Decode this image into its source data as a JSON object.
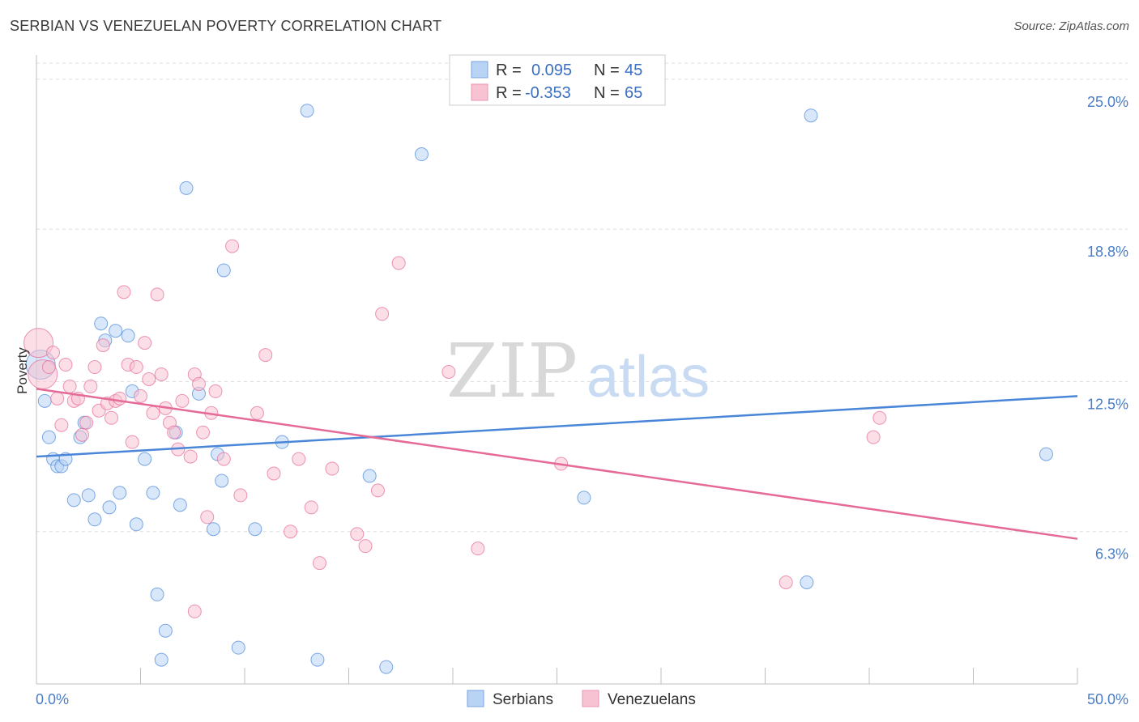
{
  "title": "SERBIAN VS VENEZUELAN POVERTY CORRELATION CHART",
  "source": "Source: ZipAtlas.com",
  "watermark": {
    "zip": "ZIP",
    "atlas": "atlas"
  },
  "legend_top": {
    "rows": [
      {
        "r_label": "R =",
        "r_value": "0.095",
        "n_label": "N =",
        "n_value": "45",
        "color": "#a9c8f0"
      },
      {
        "r_label": "R =",
        "r_value": "-0.353",
        "n_label": "N =",
        "n_value": "65",
        "color": "#f6b9cb"
      }
    ]
  },
  "legend_bottom": {
    "items": [
      "Serbians",
      "Venezuelans"
    ]
  },
  "chart_data": {
    "type": "scatter",
    "xlabel": "",
    "ylabel": "Poverty",
    "xlim": [
      0,
      50
    ],
    "ylim": [
      0,
      26
    ],
    "x_tick_labels": [
      "0.0%",
      "50.0%"
    ],
    "y_ticks": [
      6.3,
      12.5,
      18.8,
      25.0
    ],
    "y_tick_labels": [
      "6.3%",
      "12.5%",
      "18.8%",
      "25.0%"
    ],
    "grid": true,
    "series": [
      {
        "name": "Serbians",
        "color": "#4a86d8",
        "fill": "#b8d3f4",
        "trend": {
          "x": [
            0,
            50
          ],
          "y": [
            9.4,
            11.9
          ]
        },
        "points": [
          [
            0.2,
            13.2
          ],
          [
            0.4,
            11.7
          ],
          [
            0.6,
            10.2
          ],
          [
            0.8,
            9.3
          ],
          [
            1.0,
            9.0
          ],
          [
            1.2,
            9.0
          ],
          [
            1.4,
            9.3
          ],
          [
            1.8,
            7.6
          ],
          [
            2.1,
            10.2
          ],
          [
            2.3,
            10.8
          ],
          [
            2.5,
            7.8
          ],
          [
            2.8,
            6.8
          ],
          [
            3.1,
            14.9
          ],
          [
            3.3,
            14.2
          ],
          [
            3.5,
            7.3
          ],
          [
            3.8,
            14.6
          ],
          [
            4.0,
            7.9
          ],
          [
            4.4,
            14.4
          ],
          [
            4.6,
            12.1
          ],
          [
            4.8,
            6.6
          ],
          [
            5.2,
            9.3
          ],
          [
            5.6,
            7.9
          ],
          [
            5.8,
            3.7
          ],
          [
            6.2,
            2.2
          ],
          [
            6.7,
            10.4
          ],
          [
            6.9,
            7.4
          ],
          [
            7.2,
            20.5
          ],
          [
            7.8,
            12.0
          ],
          [
            8.5,
            6.4
          ],
          [
            8.7,
            9.5
          ],
          [
            8.9,
            8.4
          ],
          [
            9.0,
            17.1
          ],
          [
            9.7,
            1.5
          ],
          [
            10.5,
            6.4
          ],
          [
            11.8,
            10.0
          ],
          [
            13.0,
            23.7
          ],
          [
            13.5,
            1.0
          ],
          [
            16.0,
            8.6
          ],
          [
            18.5,
            21.9
          ],
          [
            6.0,
            1.0
          ],
          [
            16.8,
            0.7
          ],
          [
            26.3,
            7.7
          ],
          [
            37.2,
            23.5
          ],
          [
            37.0,
            4.2
          ],
          [
            48.5,
            9.5
          ]
        ]
      },
      {
        "name": "Venezuelans",
        "color": "#e56a97",
        "fill": "#f7c2d2",
        "trend": {
          "x": [
            0,
            50
          ],
          "y": [
            12.2,
            6.0
          ]
        },
        "points": [
          [
            0.1,
            14.1
          ],
          [
            0.3,
            12.8
          ],
          [
            0.6,
            13.1
          ],
          [
            0.8,
            13.7
          ],
          [
            1.0,
            11.8
          ],
          [
            1.2,
            10.7
          ],
          [
            1.4,
            13.2
          ],
          [
            1.6,
            12.3
          ],
          [
            1.8,
            11.7
          ],
          [
            2.0,
            11.8
          ],
          [
            2.2,
            10.3
          ],
          [
            2.4,
            10.8
          ],
          [
            2.6,
            12.3
          ],
          [
            2.8,
            13.1
          ],
          [
            3.0,
            11.3
          ],
          [
            3.2,
            14.0
          ],
          [
            3.4,
            11.6
          ],
          [
            3.6,
            11.0
          ],
          [
            3.8,
            11.7
          ],
          [
            4.0,
            11.8
          ],
          [
            4.2,
            16.2
          ],
          [
            4.4,
            13.2
          ],
          [
            4.6,
            10.0
          ],
          [
            4.8,
            13.1
          ],
          [
            5.0,
            11.9
          ],
          [
            5.2,
            14.1
          ],
          [
            5.4,
            12.6
          ],
          [
            5.6,
            11.2
          ],
          [
            5.8,
            16.1
          ],
          [
            6.0,
            12.8
          ],
          [
            6.2,
            11.4
          ],
          [
            6.4,
            10.8
          ],
          [
            6.6,
            10.4
          ],
          [
            6.8,
            9.7
          ],
          [
            7.0,
            11.7
          ],
          [
            7.4,
            9.4
          ],
          [
            7.6,
            12.8
          ],
          [
            7.8,
            12.4
          ],
          [
            8.0,
            10.4
          ],
          [
            8.2,
            6.9
          ],
          [
            8.4,
            11.2
          ],
          [
            8.6,
            12.1
          ],
          [
            9.0,
            9.3
          ],
          [
            9.4,
            18.1
          ],
          [
            9.8,
            7.8
          ],
          [
            10.6,
            11.2
          ],
          [
            11.0,
            13.6
          ],
          [
            11.4,
            8.7
          ],
          [
            12.2,
            6.3
          ],
          [
            12.6,
            9.3
          ],
          [
            13.2,
            7.3
          ],
          [
            13.6,
            5.0
          ],
          [
            14.2,
            8.9
          ],
          [
            15.4,
            6.2
          ],
          [
            15.8,
            5.7
          ],
          [
            16.4,
            8.0
          ],
          [
            16.6,
            15.3
          ],
          [
            17.4,
            17.4
          ],
          [
            19.8,
            12.9
          ],
          [
            21.2,
            5.6
          ],
          [
            25.2,
            9.1
          ],
          [
            36.0,
            4.2
          ],
          [
            40.2,
            10.2
          ],
          [
            40.5,
            11.0
          ],
          [
            7.6,
            3.0
          ]
        ]
      }
    ]
  }
}
